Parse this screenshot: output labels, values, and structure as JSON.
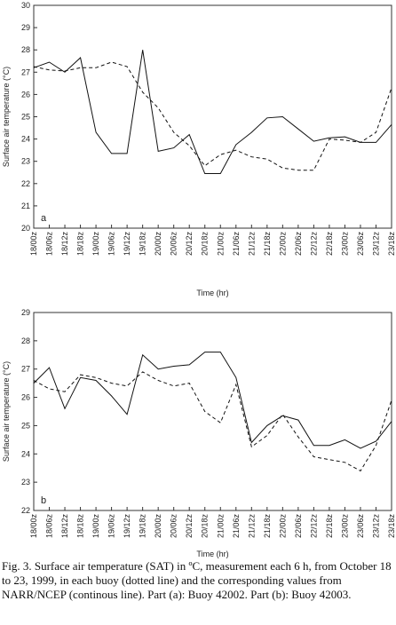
{
  "chart_data": [
    {
      "type": "line",
      "ylabel": "Surface air temperature (°C)",
      "xlabel": "Time (hr)",
      "panel_label": "a",
      "ylim": [
        20,
        30
      ],
      "yticks": [
        20,
        21,
        22,
        23,
        24,
        25,
        26,
        27,
        28,
        29,
        30
      ],
      "categories": [
        "18/00z",
        "18/06z",
        "18/12z",
        "18/18z",
        "19/00z",
        "19/06z",
        "19/12z",
        "19/18z",
        "20/00z",
        "20/06z",
        "20/12z",
        "20/18z",
        "21/00z",
        "21/06z",
        "21/12z",
        "21/18z",
        "22/00z",
        "22/06z",
        "22/12z",
        "22/18z",
        "23/00z",
        "23/06z",
        "23/12z",
        "23/18z"
      ],
      "series": [
        {
          "style": "solid",
          "values": [
            27.2,
            27.45,
            27.0,
            27.65,
            24.3,
            23.35,
            23.35,
            28.0,
            23.45,
            23.6,
            24.2,
            22.45,
            22.45,
            23.75,
            24.3,
            24.95,
            25.0,
            24.45,
            23.9,
            24.05,
            24.1,
            23.85,
            23.85,
            24.65
          ]
        },
        {
          "style": "dashed",
          "values": [
            27.25,
            27.1,
            27.05,
            27.2,
            27.2,
            27.45,
            27.25,
            26.1,
            25.4,
            24.3,
            23.7,
            22.8,
            23.3,
            23.5,
            23.2,
            23.1,
            22.7,
            22.6,
            22.6,
            24.0,
            23.95,
            23.85,
            24.3,
            26.3
          ]
        }
      ]
    },
    {
      "type": "line",
      "ylabel": "Surface air temperature (°C)",
      "xlabel": "Time (hr)",
      "panel_label": "b",
      "ylim": [
        22,
        29
      ],
      "yticks": [
        22,
        23,
        24,
        25,
        26,
        27,
        28,
        29
      ],
      "categories": [
        "18/00z",
        "18/06z",
        "18/12z",
        "18/18z",
        "19/00z",
        "19/06z",
        "19/12z",
        "19/18z",
        "20/00z",
        "20/06z",
        "20/12z",
        "20/18z",
        "21/00z",
        "21/06z",
        "21/12z",
        "21/18z",
        "22/00z",
        "22/06z",
        "22/12z",
        "22/18z",
        "23/00z",
        "23/06z",
        "23/12z",
        "23/18z"
      ],
      "series": [
        {
          "style": "solid",
          "values": [
            26.5,
            27.05,
            25.6,
            26.7,
            26.6,
            26.05,
            25.4,
            27.5,
            27.0,
            27.1,
            27.15,
            27.6,
            27.6,
            26.7,
            24.4,
            25.0,
            25.35,
            25.2,
            24.3,
            24.3,
            24.5,
            24.2,
            24.45,
            25.15
          ]
        },
        {
          "style": "dashed",
          "values": [
            26.6,
            26.3,
            26.2,
            26.8,
            26.7,
            26.5,
            26.4,
            26.9,
            26.6,
            26.4,
            26.5,
            25.5,
            25.1,
            26.45,
            24.25,
            24.65,
            25.4,
            24.6,
            23.9,
            23.8,
            23.7,
            23.4,
            24.3,
            25.9
          ]
        }
      ]
    }
  ],
  "caption": "Fig. 3. Surface air temperature (SAT) in ºC, measurement each 6 h, from October 18 to 23, 1999, in each buoy (dotted line) and the corresponding values from NARR/NCEP (continous line). Part (a): Buoy 42002. Part (b): Buoy 42003."
}
